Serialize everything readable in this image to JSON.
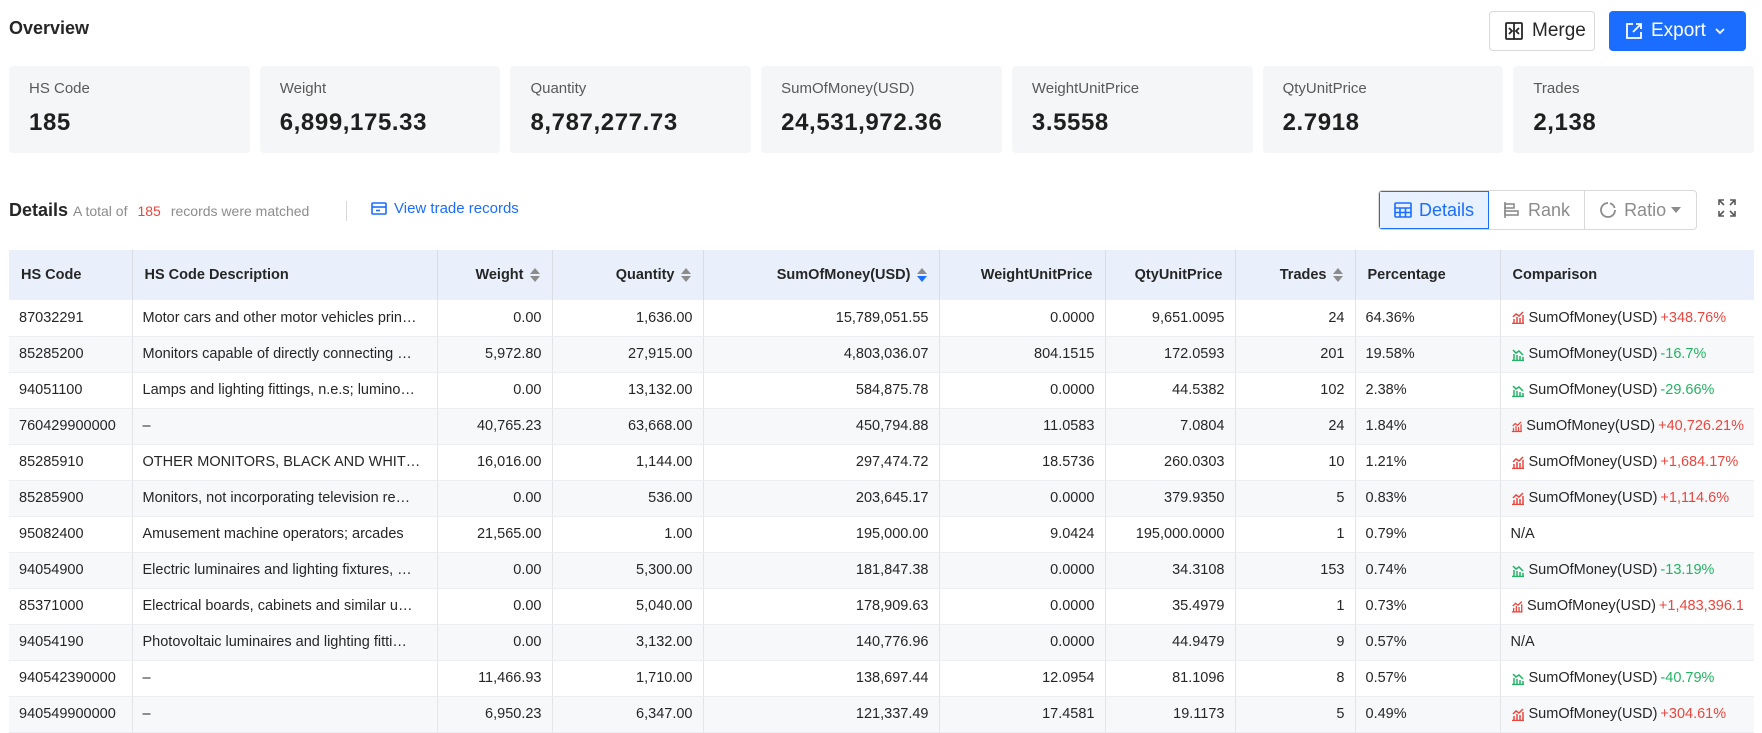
{
  "overview": {
    "title": "Overview",
    "merge_label": "Merge",
    "export_label": "Export"
  },
  "summary": [
    {
      "label": "HS Code",
      "value": "185"
    },
    {
      "label": "Weight",
      "value": "6,899,175.33"
    },
    {
      "label": "Quantity",
      "value": "8,787,277.73"
    },
    {
      "label": "SumOfMoney(USD)",
      "value": "24,531,972.36"
    },
    {
      "label": "WeightUnitPrice",
      "value": "3.5558"
    },
    {
      "label": "QtyUnitPrice",
      "value": "2.7918"
    },
    {
      "label": "Trades",
      "value": "2,138"
    }
  ],
  "details": {
    "title": "Details",
    "note_prefix": "A total of",
    "count": "185",
    "note_suffix": "records were matched",
    "view_link": "View trade records",
    "views": [
      "Details",
      "Rank",
      "Ratio"
    ],
    "active_view": "Details"
  },
  "table": {
    "columns": [
      "HS Code",
      "HS Code Description",
      "Weight",
      "Quantity",
      "SumOfMoney(USD)",
      "WeightUnitPrice",
      "QtyUnitPrice",
      "Trades",
      "Percentage",
      "Comparison"
    ],
    "sorted_column": "SumOfMoney(USD)",
    "sort_direction": "descending",
    "rows": [
      {
        "hs": "87032291",
        "desc": "Motor cars and other motor vehicles prin…",
        "weight": "0.00",
        "qty": "1,636.00",
        "money": "15,789,051.55",
        "wup": "0.0000",
        "qup": "9,651.0095",
        "trades": "24",
        "pct": "64.36%",
        "cmp_label": "SumOfMoney(USD)",
        "cmp_value": "+348.76%",
        "trend": "up"
      },
      {
        "hs": "85285200",
        "desc": "Monitors capable of directly connecting …",
        "weight": "5,972.80",
        "qty": "27,915.00",
        "money": "4,803,036.07",
        "wup": "804.1515",
        "qup": "172.0593",
        "trades": "201",
        "pct": "19.58%",
        "cmp_label": "SumOfMoney(USD)",
        "cmp_value": "-16.7%",
        "trend": "down"
      },
      {
        "hs": "94051100",
        "desc": "Lamps and lighting fittings, n.e.s; lumino…",
        "weight": "0.00",
        "qty": "13,132.00",
        "money": "584,875.78",
        "wup": "0.0000",
        "qup": "44.5382",
        "trades": "102",
        "pct": "2.38%",
        "cmp_label": "SumOfMoney(USD)",
        "cmp_value": "-29.66%",
        "trend": "down"
      },
      {
        "hs": "760429900000",
        "desc": "–",
        "weight": "40,765.23",
        "qty": "63,668.00",
        "money": "450,794.88",
        "wup": "11.0583",
        "qup": "7.0804",
        "trades": "24",
        "pct": "1.84%",
        "cmp_label": "SumOfMoney(USD)",
        "cmp_value": "+40,726.21%",
        "trend": "up"
      },
      {
        "hs": "85285910",
        "desc": "OTHER MONITORS, BLACK AND WHITE …",
        "weight": "16,016.00",
        "qty": "1,144.00",
        "money": "297,474.72",
        "wup": "18.5736",
        "qup": "260.0303",
        "trades": "10",
        "pct": "1.21%",
        "cmp_label": "SumOfMoney(USD)",
        "cmp_value": "+1,684.17%",
        "trend": "up"
      },
      {
        "hs": "85285900",
        "desc": "Monitors, not incorporating television re…",
        "weight": "0.00",
        "qty": "536.00",
        "money": "203,645.17",
        "wup": "0.0000",
        "qup": "379.9350",
        "trades": "5",
        "pct": "0.83%",
        "cmp_label": "SumOfMoney(USD)",
        "cmp_value": "+1,114.6%",
        "trend": "up"
      },
      {
        "hs": "95082400",
        "desc": "Amusement machine operators; arcades",
        "weight": "21,565.00",
        "qty": "1.00",
        "money": "195,000.00",
        "wup": "9.0424",
        "qup": "195,000.0000",
        "trades": "1",
        "pct": "0.79%",
        "cmp_label": "",
        "cmp_value": "N/A",
        "trend": "none"
      },
      {
        "hs": "94054900",
        "desc": "Electric luminaires and lighting fixtures, …",
        "weight": "0.00",
        "qty": "5,300.00",
        "money": "181,847.38",
        "wup": "0.0000",
        "qup": "34.3108",
        "trades": "153",
        "pct": "0.74%",
        "cmp_label": "SumOfMoney(USD)",
        "cmp_value": "-13.19%",
        "trend": "down"
      },
      {
        "hs": "85371000",
        "desc": "Electrical boards, cabinets and similar u…",
        "weight": "0.00",
        "qty": "5,040.00",
        "money": "178,909.63",
        "wup": "0.0000",
        "qup": "35.4979",
        "trades": "1",
        "pct": "0.73%",
        "cmp_label": "SumOfMoney(USD)",
        "cmp_value": "+1,483,396.1",
        "trend": "up"
      },
      {
        "hs": "94054190",
        "desc": "Photovoltaic luminaires and lighting fitti…",
        "weight": "0.00",
        "qty": "3,132.00",
        "money": "140,776.96",
        "wup": "0.0000",
        "qup": "44.9479",
        "trades": "9",
        "pct": "0.57%",
        "cmp_label": "",
        "cmp_value": "N/A",
        "trend": "none"
      },
      {
        "hs": "940542390000",
        "desc": "–",
        "weight": "11,466.93",
        "qty": "1,710.00",
        "money": "138,697.44",
        "wup": "12.0954",
        "qup": "81.1096",
        "trades": "8",
        "pct": "0.57%",
        "cmp_label": "SumOfMoney(USD)",
        "cmp_value": "-40.79%",
        "trend": "down"
      },
      {
        "hs": "940549900000",
        "desc": "–",
        "weight": "6,950.23",
        "qty": "6,347.00",
        "money": "121,337.49",
        "wup": "17.4581",
        "qup": "19.1173",
        "trades": "5",
        "pct": "0.49%",
        "cmp_label": "SumOfMoney(USD)",
        "cmp_value": "+304.61%",
        "trend": "up"
      }
    ]
  },
  "colors": {
    "accent": "#1a6dff",
    "up": "#e8473f",
    "down": "#23b364",
    "header_bg": "#e9f0fb",
    "card_bg": "#f5f6f7"
  }
}
